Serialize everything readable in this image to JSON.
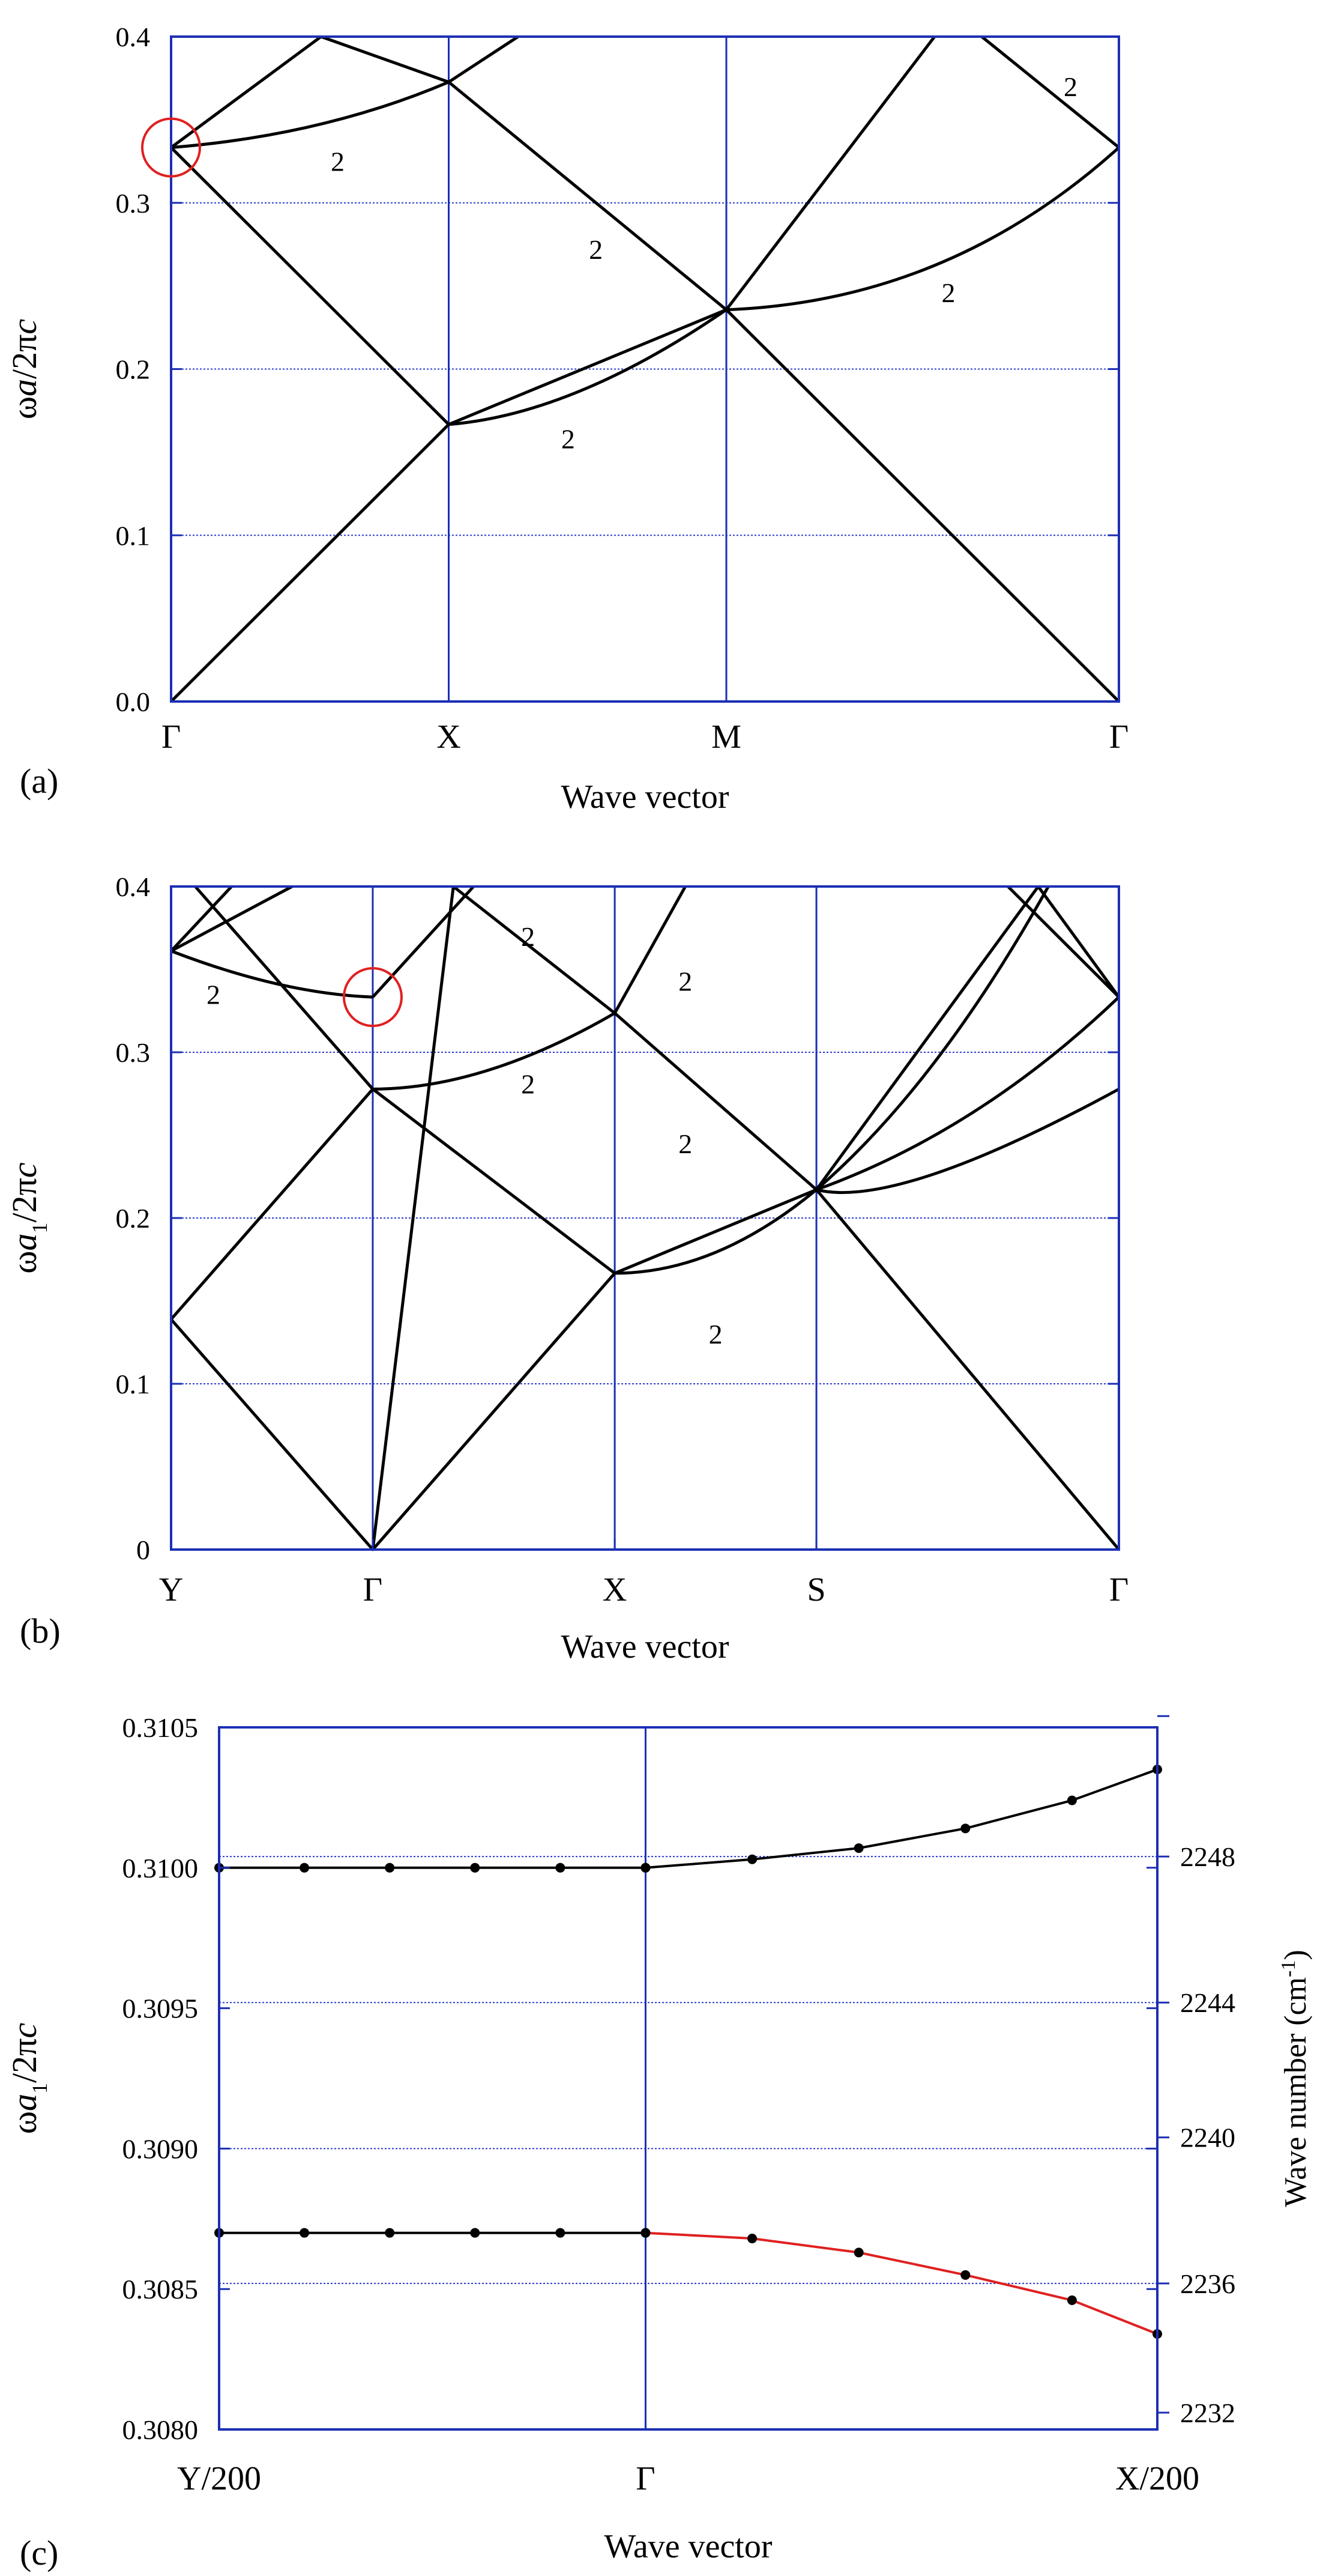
{
  "colors": {
    "frame": "#1c2fb4",
    "grid": "#2a3bd0",
    "curve": "#000000",
    "highlight": "#e02020",
    "dot": "#000000"
  },
  "chart_data": [
    {
      "type": "line",
      "panel_label": "(a)",
      "xlabel": "Wave vector",
      "ylabel_parts": [
        "ω",
        "a",
        "/2π",
        "c"
      ],
      "ylim": [
        0,
        0.4
      ],
      "yticks": [
        0.0,
        0.1,
        0.2,
        0.3,
        0.4
      ],
      "ytick_labels": [
        "0.0",
        "0.1",
        "0.2",
        "0.3",
        "0.4"
      ],
      "hgrid": [
        0.1,
        0.2,
        0.3
      ],
      "xlim": [
        0,
        3.414
      ],
      "xticks": [
        0,
        1,
        2,
        3.414
      ],
      "xtick_labels": [
        "Γ",
        "X",
        "M",
        "Γ"
      ],
      "vlines": [
        1,
        2
      ],
      "series": [
        {
          "type": "poly",
          "points": [
            [
              0,
              0
            ],
            [
              1,
              0.1667
            ],
            [
              2,
              0.2357
            ],
            [
              3.414,
              0
            ]
          ]
        },
        {
          "type": "poly",
          "points": [
            [
              0,
              0.3333
            ],
            [
              1,
              0.1667
            ]
          ]
        },
        {
          "type": "poly",
          "points": [
            [
              0,
              0.3333
            ],
            [
              0.54,
              0.4
            ]
          ]
        },
        {
          "type": "poly",
          "points": [
            [
              0.54,
              0.4
            ],
            [
              1,
              0.3727
            ],
            [
              2,
              0.2357
            ],
            [
              2.75,
              0.4
            ]
          ]
        },
        {
          "type": "poly",
          "points": [
            [
              1,
              0.3727
            ],
            [
              1.25,
              0.4
            ]
          ]
        },
        {
          "type": "poly",
          "points": [
            [
              2.92,
              0.4
            ],
            [
              3.414,
              0.3333
            ]
          ]
        },
        {
          "type": "curve",
          "from": [
            0,
            0.3333
          ],
          "to": [
            1,
            0.3727
          ],
          "ctrl": [
            0.55,
            0.3406
          ]
        },
        {
          "type": "curve",
          "from": [
            1,
            0.1667
          ],
          "to": [
            2,
            0.2357
          ],
          "ctrl": [
            1.45,
            0.1727
          ]
        },
        {
          "type": "curve",
          "from": [
            2,
            0.2357
          ],
          "to": [
            3.414,
            0.3333
          ],
          "ctrl": [
            2.8,
            0.2407
          ]
        }
      ],
      "annotations": [
        {
          "x": 0.6,
          "y": 0.325,
          "text": "2"
        },
        {
          "x": 1.53,
          "y": 0.272,
          "text": "2"
        },
        {
          "x": 1.43,
          "y": 0.158,
          "text": "2"
        },
        {
          "x": 2.8,
          "y": 0.246,
          "text": "2"
        },
        {
          "x": 3.24,
          "y": 0.37,
          "text": "2"
        }
      ],
      "circle": {
        "x": 0,
        "y": 0.3333
      }
    },
    {
      "type": "line",
      "panel_label": "(b)",
      "xlabel": "Wave vector",
      "ylabel_parts": [
        "ω",
        "a",
        "1",
        "/2π",
        "c"
      ],
      "ylim": [
        0,
        0.4
      ],
      "yticks": [
        0,
        0.1,
        0.2,
        0.3,
        0.4
      ],
      "ytick_labels": [
        "0",
        "0.1",
        "0.2",
        "0.3",
        "0.4"
      ],
      "hgrid": [
        0.1,
        0.2,
        0.3
      ],
      "xlim": [
        0,
        4.7
      ],
      "xticks": [
        0,
        1,
        2.2,
        3.2,
        4.7
      ],
      "xtick_labels": [
        "Y",
        "Γ",
        "X",
        "S",
        "Γ"
      ],
      "vlines": [
        1,
        2.2,
        3.2
      ],
      "series": [
        {
          "type": "poly",
          "points": [
            [
              0,
              0.1389
            ],
            [
              1,
              0
            ],
            [
              2.2,
              0.1667
            ],
            [
              3.2,
              0.2171
            ],
            [
              4.7,
              0
            ]
          ]
        },
        {
          "type": "poly",
          "points": [
            [
              0,
              0.1389
            ],
            [
              1,
              0.2778
            ]
          ]
        },
        {
          "type": "poly",
          "points": [
            [
              1,
              0
            ],
            [
              1.4,
              0.4
            ]
          ]
        },
        {
          "type": "poly",
          "points": [
            [
              0.12,
              0.4
            ],
            [
              1,
              0.2778
            ],
            [
              2.2,
              0.1667
            ]
          ]
        },
        {
          "type": "poly",
          "points": [
            [
              0,
              0.3611
            ],
            [
              0.3,
              0.4
            ]
          ]
        },
        {
          "type": "poly",
          "points": [
            [
              0,
              0.3611
            ],
            [
              0.6,
              0.4
            ]
          ]
        },
        {
          "type": "poly",
          "points": [
            [
              1,
              0.3333
            ],
            [
              1.5,
              0.4
            ]
          ]
        },
        {
          "type": "poly",
          "points": [
            [
              1.4,
              0.4
            ],
            [
              2.2,
              0.3236
            ],
            [
              3.2,
              0.2171
            ]
          ]
        },
        {
          "type": "poly",
          "points": [
            [
              2.2,
              0.3236
            ],
            [
              2.55,
              0.4
            ]
          ]
        },
        {
          "type": "poly",
          "points": [
            [
              3.2,
              0.2171
            ],
            [
              4.3,
              0.4
            ]
          ]
        },
        {
          "type": "poly",
          "points": [
            [
              4.3,
              0.4
            ],
            [
              4.7,
              0.3333
            ]
          ]
        },
        {
          "type": "poly",
          "points": [
            [
              4.15,
              0.4
            ],
            [
              4.7,
              0.3333
            ]
          ]
        },
        {
          "type": "curve",
          "from": [
            0,
            0.3611
          ],
          "to": [
            1,
            0.3333
          ],
          "ctrl": [
            0.55,
            0.3353
          ]
        },
        {
          "type": "curve",
          "from": [
            1,
            0.2778
          ],
          "to": [
            2.2,
            0.3236
          ],
          "ctrl": [
            1.55,
            0.2778
          ]
        },
        {
          "type": "curve",
          "from": [
            2.2,
            0.1667
          ],
          "to": [
            3.2,
            0.2171
          ],
          "ctrl": [
            2.7,
            0.1667
          ]
        },
        {
          "type": "curve",
          "from": [
            3.2,
            0.2171
          ],
          "to": [
            4.7,
            0.2778
          ],
          "ctrl": [
            3.6,
            0.205
          ]
        },
        {
          "type": "curve",
          "from": [
            3.2,
            0.2171
          ],
          "to": [
            4.7,
            0.3333
          ],
          "ctrl": [
            4.0,
            0.252
          ]
        },
        {
          "type": "curve",
          "from": [
            3.2,
            0.2171
          ],
          "to": [
            4.35,
            0.4
          ],
          "ctrl": [
            3.8,
            0.28
          ]
        }
      ],
      "annotations": [
        {
          "x": 0.21,
          "y": 0.335,
          "text": "2"
        },
        {
          "x": 1.77,
          "y": 0.37,
          "text": "2"
        },
        {
          "x": 2.55,
          "y": 0.343,
          "text": "2"
        },
        {
          "x": 1.77,
          "y": 0.281,
          "text": "2"
        },
        {
          "x": 2.55,
          "y": 0.245,
          "text": "2"
        },
        {
          "x": 2.7,
          "y": 0.13,
          "text": "2"
        }
      ],
      "circle": {
        "x": 1,
        "y": 0.3333
      }
    },
    {
      "type": "line",
      "panel_label": "(c)",
      "xlabel": "Wave vector",
      "ylabel_parts": [
        "ω",
        "a",
        "1",
        "/2π",
        "c"
      ],
      "ylabel_right": "Wave number (cm",
      "ylabel_right_sup": "-1",
      "ylabel_right_end": ")",
      "ylim": [
        0.308,
        0.3105
      ],
      "yticks": [
        0.308,
        0.3085,
        0.309,
        0.3095,
        0.31,
        0.3105
      ],
      "ytick_labels": [
        "0.3080",
        "0.3085",
        "0.3090",
        "0.3095",
        "0.3100",
        "0.3105"
      ],
      "hgrid": [
        0.30852,
        0.309,
        0.30952,
        0.31004
      ],
      "yticks_right_pos": [
        0.30806,
        0.30852,
        0.30904,
        0.30952,
        0.31004,
        0.31054
      ],
      "ytick_labels_right": [
        "2232",
        "2236",
        "2240",
        "2244",
        "2248",
        ""
      ],
      "right_labels_shown": [
        "2232",
        "2236",
        "2240",
        "2244",
        "2248"
      ],
      "xlim": [
        -1,
        1.2
      ],
      "xticks": [
        -1,
        0,
        1.2
      ],
      "xtick_labels": [
        "Y/200",
        "Γ",
        "X/200"
      ],
      "vlines": [
        0
      ],
      "upper_left": {
        "x": [
          -1,
          -0.8,
          -0.6,
          -0.4,
          -0.2,
          0
        ],
        "y": [
          0.31,
          0.31,
          0.31,
          0.31,
          0.31,
          0.31
        ]
      },
      "upper_right": {
        "x": [
          0,
          0.25,
          0.5,
          0.75,
          1.0,
          1.2
        ],
        "y": [
          0.31,
          0.31003,
          0.31007,
          0.31014,
          0.31024,
          0.31035
        ]
      },
      "lower_left": {
        "x": [
          -1,
          -0.8,
          -0.6,
          -0.4,
          -0.2,
          0
        ],
        "y": [
          0.3087,
          0.3087,
          0.3087,
          0.3087,
          0.3087,
          0.3087
        ]
      },
      "lower_right": {
        "x": [
          0,
          0.25,
          0.5,
          0.75,
          1.0,
          1.2
        ],
        "y": [
          0.3087,
          0.30868,
          0.30863,
          0.30855,
          0.30846,
          0.30834
        ]
      }
    }
  ]
}
